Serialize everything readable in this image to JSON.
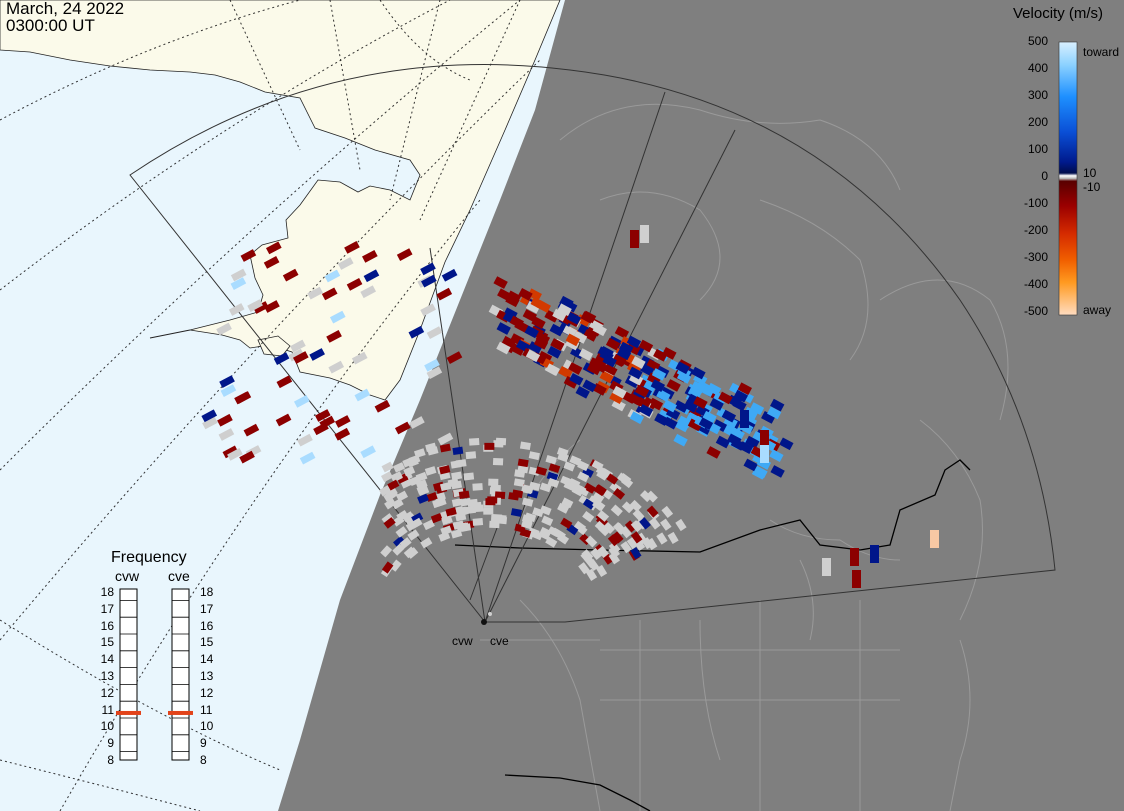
{
  "header": {
    "date": "March, 24 2022",
    "time": "0300:00 UT"
  },
  "colorbar": {
    "title": "Velocity (m/s)",
    "ticks": [
      "500",
      "400",
      "300",
      "200",
      "100",
      "0",
      "-100",
      "-200",
      "-300",
      "-400",
      "-500"
    ],
    "extra_labels": {
      "toward": "toward",
      "pos10": "10",
      "neg10": "-10",
      "away": "away"
    },
    "range": [
      -500,
      500
    ]
  },
  "frequency_panel": {
    "title": "Frequency",
    "radars": [
      {
        "code": "cvw",
        "selected_mhz": 10.8
      },
      {
        "code": "cve",
        "selected_mhz": 10.8
      }
    ],
    "scale": [
      "18",
      "17",
      "16",
      "15",
      "14",
      "13",
      "12",
      "11",
      "10",
      "9",
      "8"
    ]
  },
  "radar_sites": [
    "cvw",
    "cve"
  ],
  "colors": {
    "ocean": "#e9f6fd",
    "land_lit": "#fbfaea",
    "night": "#7f7f7f",
    "no_velocity": "#cfcfcf",
    "toward_strong": "#3fa9f5",
    "toward_weak": "#00168a",
    "away_weak": "#8c0000",
    "away_strong": "#ff8800",
    "freq_marker": "#e2431a"
  }
}
